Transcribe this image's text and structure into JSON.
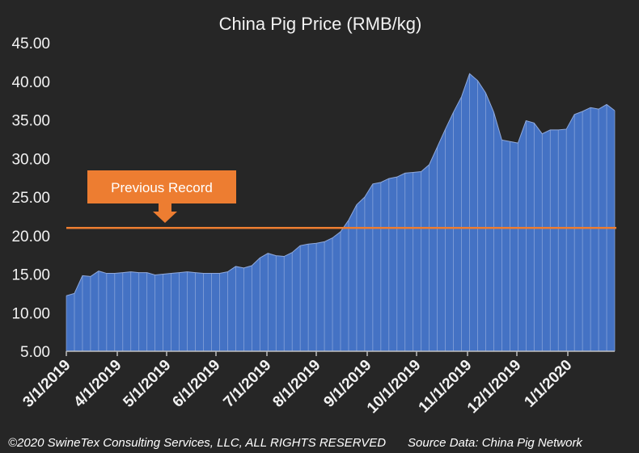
{
  "chart_data": {
    "type": "area",
    "title": "China Pig Price (RMB/kg)",
    "xlabel": "",
    "ylabel": "",
    "ylim": [
      5,
      45
    ],
    "yticks": [
      "5.00",
      "10.00",
      "15.00",
      "20.00",
      "25.00",
      "30.00",
      "35.00",
      "40.00",
      "45.00"
    ],
    "xticks": [
      "3/1/2019",
      "4/1/2019",
      "5/1/2019",
      "6/1/2019",
      "7/1/2019",
      "8/1/2019",
      "9/1/2019",
      "10/1/2019",
      "11/1/2019",
      "12/1/2019",
      "1/1/2020"
    ],
    "grid": false,
    "series": [
      {
        "color": "#4472c4",
        "values": [
          12.2,
          12.5,
          14.8,
          14.7,
          15.4,
          15.1,
          15.1,
          15.2,
          15.3,
          15.2,
          15.2,
          14.9,
          15.0,
          15.1,
          15.2,
          15.3,
          15.2,
          15.1,
          15.1,
          15.1,
          15.3,
          16.0,
          15.8,
          16.1,
          17.1,
          17.7,
          17.4,
          17.3,
          17.8,
          18.7,
          18.9,
          19.0,
          19.2,
          19.7,
          20.5,
          22.0,
          24.0,
          25.0,
          26.7,
          26.9,
          27.4,
          27.6,
          28.1,
          28.2,
          28.3,
          29.2,
          31.5,
          33.8,
          36.0,
          38.0,
          41.0,
          40.1,
          38.5,
          36.0,
          32.4,
          32.2,
          32.0,
          34.9,
          34.6,
          33.2,
          33.7,
          33.7,
          33.8,
          35.7,
          36.1,
          36.6,
          36.4,
          37.0,
          36.2
        ]
      }
    ],
    "reference_line": {
      "value": 21.0,
      "color": "#ed7d31"
    },
    "callout": {
      "text": "Previous Record",
      "color": "#ed7d31"
    }
  },
  "footer": {
    "copyright": "©2020 SwineTex Consulting Services, LLC, ALL RIGHTS RESERVED",
    "source": "Source Data: China Pig Network"
  }
}
